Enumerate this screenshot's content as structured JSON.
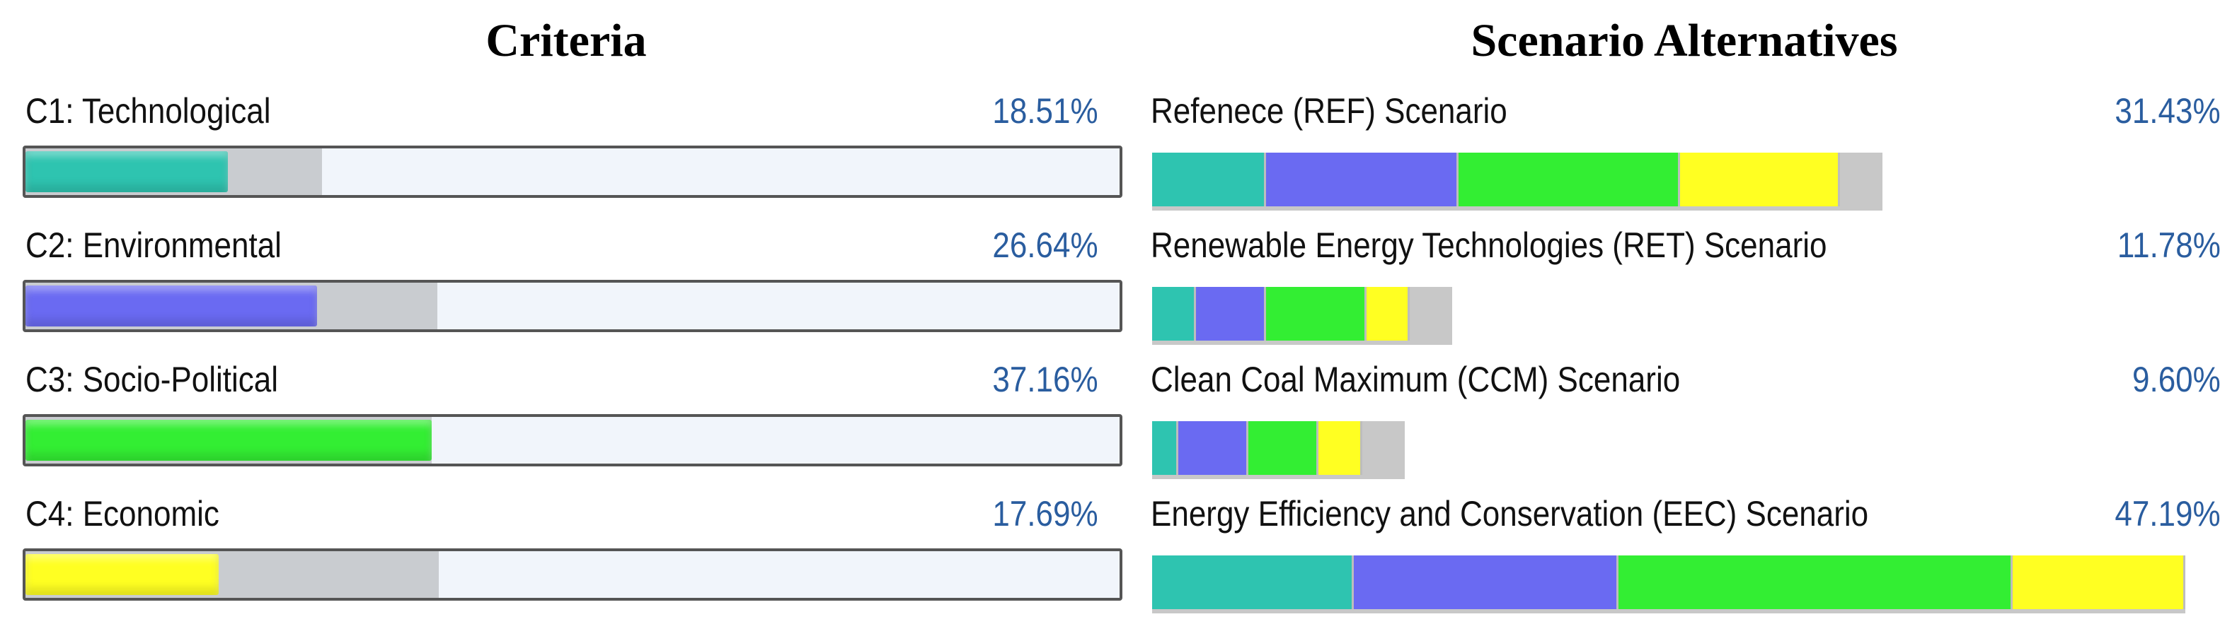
{
  "left_title": "Criteria",
  "right_title": "Scenario Alternatives",
  "colors": {
    "c1": "#2ec4b0",
    "c2": "#6a6af2",
    "c3": "#33ee33",
    "c4": "#ffff22"
  },
  "chart_data": [
    {
      "type": "bar",
      "title": "Criteria",
      "categories": [
        "C1: Technological",
        "C2: Environmental",
        "C3: Socio-Political",
        "C4: Economic"
      ],
      "values": [
        18.51,
        26.64,
        37.16,
        17.69
      ],
      "value_labels": [
        "18.51%",
        "26.64%",
        "37.16%",
        "17.69%"
      ],
      "ylim": [
        0,
        100
      ]
    },
    {
      "type": "bar",
      "stacked": true,
      "title": "Scenario Alternatives",
      "categories": [
        "Refenece (REF) Scenario",
        "Renewable Energy Technologies (RET) Scenario",
        "Clean Coal Maximum (CCM) Scenario",
        "Energy Efficiency and Conservation (EEC) Scenario"
      ],
      "values": [
        31.43,
        11.78,
        9.6,
        47.19
      ],
      "value_labels": [
        "31.43%",
        "11.78%",
        "9.60%",
        "47.19%"
      ],
      "series": [
        {
          "values": [
            5.2,
            2.0,
            1.2,
            9.2
          ]
        },
        {
          "values": [
            8.8,
            3.2,
            3.2,
            12.1
          ]
        },
        {
          "values": [
            10.1,
            4.6,
            3.2,
            18.0
          ]
        },
        {
          "values": [
            7.33,
            1.98,
            2.0,
            7.89
          ]
        }
      ],
      "ylim": [
        0,
        47.19
      ]
    }
  ]
}
